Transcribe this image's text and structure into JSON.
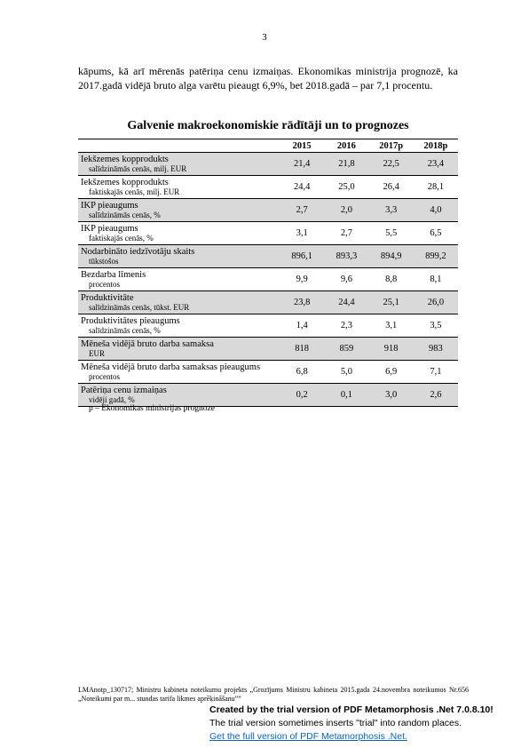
{
  "page_number": "3",
  "intro_text": "kāpums, kā arī mērenās patēriņa cenu izmaiņas. Ekonomikas ministrija prognozē, ka 2017.gadā vidējā bruto alga varētu pieaugt 6,9%, bet 2018.gadā – par 7,1 procentu.",
  "table": {
    "title": "Galvenie makroekonomiskie rādītāji un to prognozes",
    "headers": [
      "2015",
      "2016",
      "2017p",
      "2018p"
    ],
    "rows": [
      {
        "label": "Iekšzemes kopprodukts",
        "sub": "salīdzināmās cenās, milj. EUR",
        "values": [
          "21,4",
          "21,8",
          "22,5",
          "23,4"
        ],
        "shaded": true
      },
      {
        "label": "Iekšzemes kopprodukts",
        "sub": "faktiskajās cenās, milj. EUR",
        "values": [
          "24,4",
          "25,0",
          "26,4",
          "28,1"
        ],
        "shaded": false
      },
      {
        "label": "IKP pieaugums",
        "sub": "salīdzināmās cenās, %",
        "values": [
          "2,7",
          "2,0",
          "3,3",
          "4,0"
        ],
        "shaded": true
      },
      {
        "label": "IKP pieaugums",
        "sub": "faktiskajās cenās, %",
        "values": [
          "3,1",
          "2,7",
          "5,5",
          "6,5"
        ],
        "shaded": false
      },
      {
        "label": "Nodarbināto iedzīvotāju skaits",
        "sub": "tūkstošos",
        "values": [
          "896,1",
          "893,3",
          "894,9",
          "899,2"
        ],
        "shaded": true
      },
      {
        "label": "Bezdarba līmenis",
        "sub": "procentos",
        "values": [
          "9,9",
          "9,6",
          "8,8",
          "8,1"
        ],
        "shaded": false
      },
      {
        "label": "Produktivitāte",
        "sub": "salīdzināmās cenās, tūkst. EUR",
        "values": [
          "23,8",
          "24,4",
          "25,1",
          "26,0"
        ],
        "shaded": true
      },
      {
        "label": "Produktivitātes pieaugums",
        "sub": "salīdzināmās cenās, %",
        "values": [
          "1,4",
          "2,3",
          "3,1",
          "3,5"
        ],
        "shaded": false
      },
      {
        "label": "Mēneša vidējā bruto darba samaksa",
        "sub": "EUR",
        "values": [
          "818",
          "859",
          "918",
          "983"
        ],
        "shaded": true
      },
      {
        "label": "Mēneša vidējā bruto darba samaksas pieaugums",
        "sub": "procentos",
        "values": [
          "6,8",
          "5,0",
          "6,9",
          "7,1"
        ],
        "shaded": false
      },
      {
        "label": "Patēriņa cenu izmaiņas",
        "sub": "vidēji gadā, %",
        "values": [
          "0,2",
          "0,1",
          "3,0",
          "2,6"
        ],
        "shaded": true
      }
    ]
  },
  "footnote": "p – Ekonomikas ministrijas prognoze",
  "footer_text": "LMAnotp_130717; Ministru kabineta noteikumu projekts „Grozījums Ministru kabineta 2015.gada 24.novembra noteikumos Nr.656 „Noteikumi par m... stundas tarifa likmes aprēķināšanu””",
  "trial_notice": {
    "line1": "Created by the trial version of PDF Metamorphosis .Net 7.0.8.10!",
    "line2": "The trial version sometimes inserts \"trial\" into random places.",
    "line3": "Get the full version of PDF Metamorphosis .Net."
  }
}
